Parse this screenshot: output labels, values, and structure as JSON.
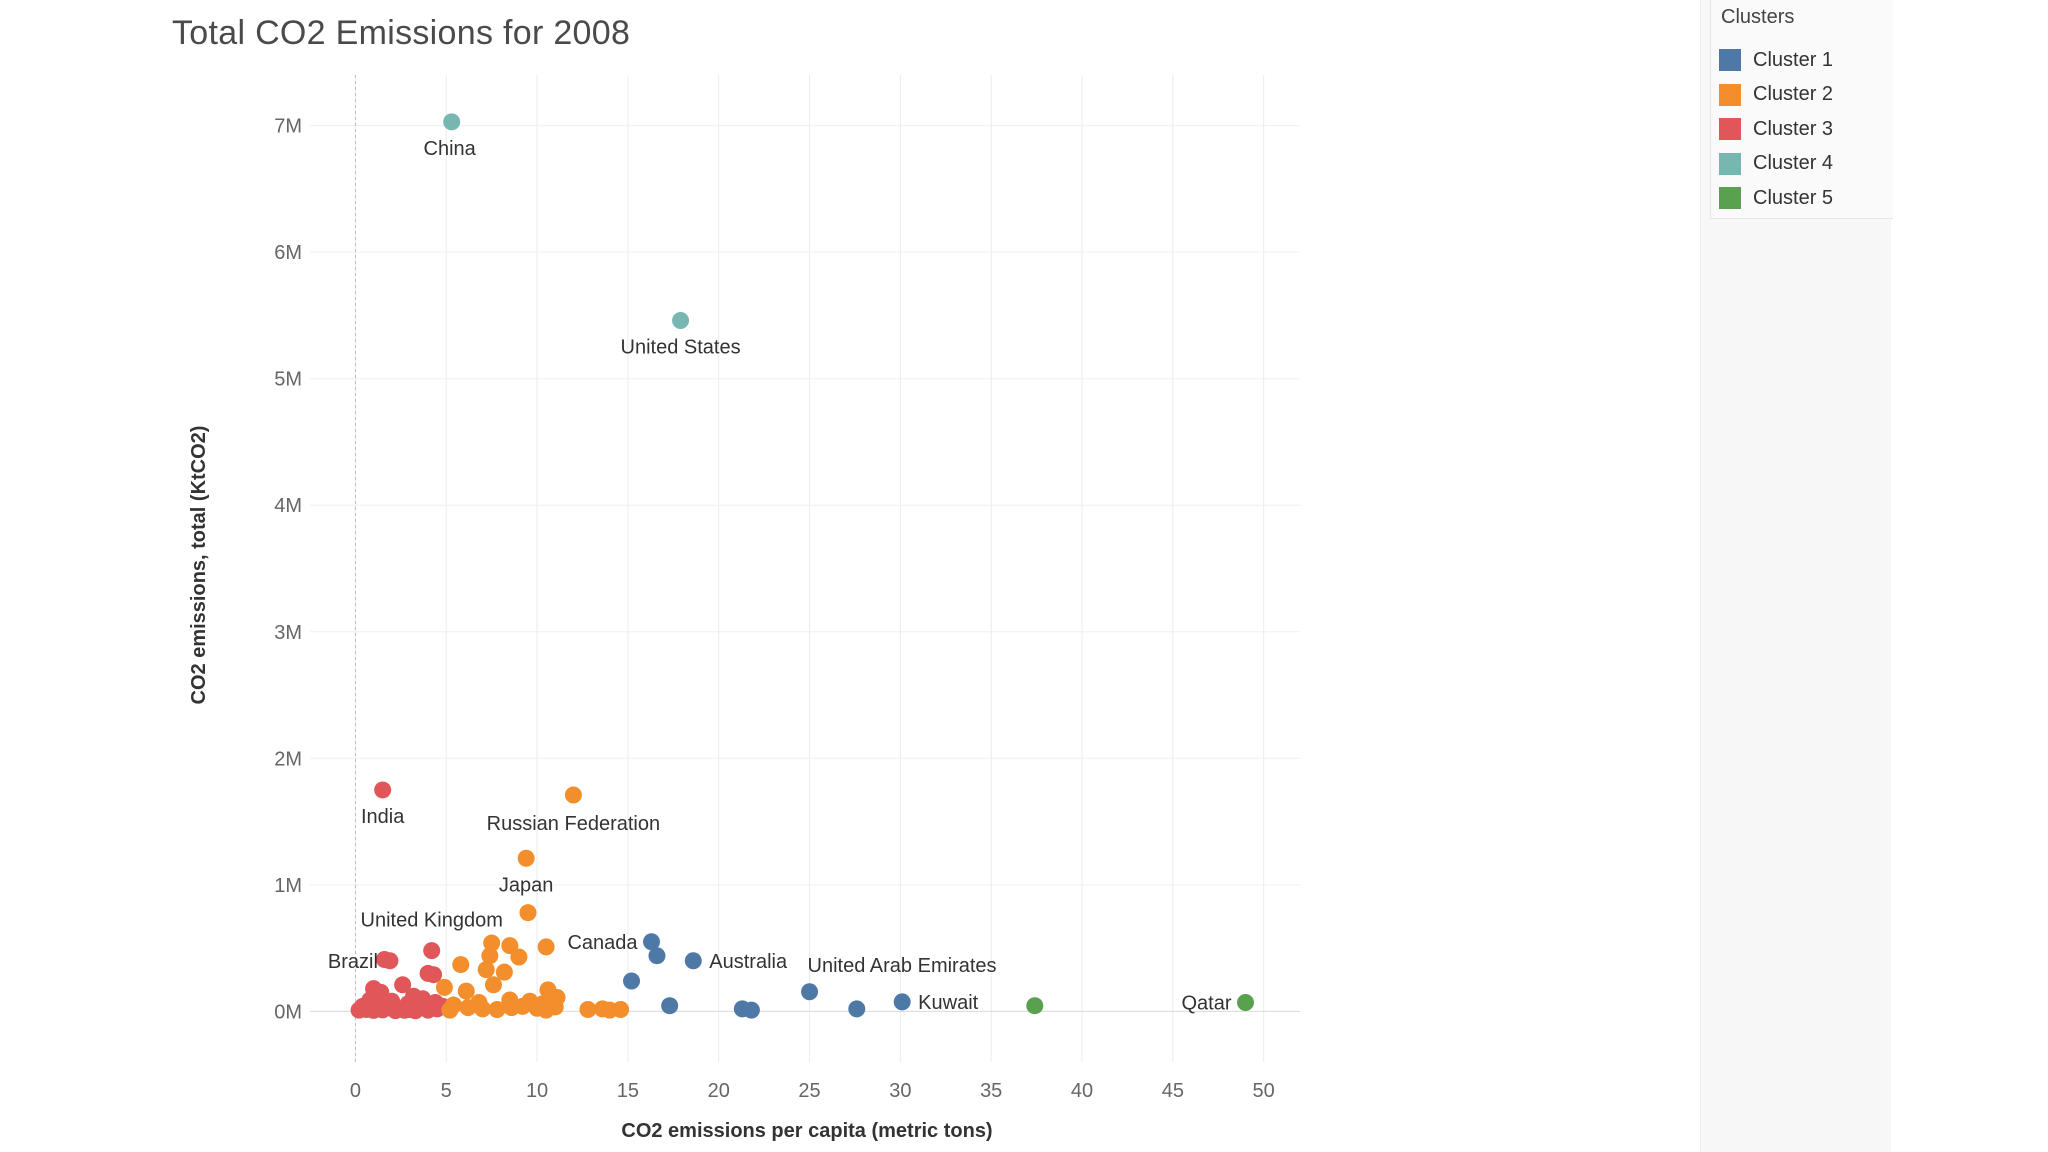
{
  "page": {
    "title": "Total CO2 Emissions for 2008"
  },
  "legend": {
    "title": "Clusters",
    "items": [
      {
        "label": "Cluster 1",
        "color": "#4e79a7"
      },
      {
        "label": "Cluster 2",
        "color": "#f28e2b"
      },
      {
        "label": "Cluster 3",
        "color": "#e15759"
      },
      {
        "label": "Cluster 4",
        "color": "#76b7b2"
      },
      {
        "label": "Cluster 5",
        "color": "#59a14f"
      }
    ]
  },
  "chart_data": {
    "type": "scatter",
    "title": "Total CO2 Emissions for 2008",
    "xlabel": "CO2 emissions per capita (metric tons)",
    "ylabel": "CO2 emissions, total (KtCO2)",
    "xlim": [
      -2.5,
      52
    ],
    "ylim": [
      -400000,
      7400000
    ],
    "x_ticks": [
      0,
      5,
      10,
      15,
      20,
      25,
      30,
      35,
      40,
      45,
      50
    ],
    "x_tick_labels": [
      "0",
      "5",
      "10",
      "15",
      "20",
      "25",
      "30",
      "35",
      "40",
      "45",
      "50"
    ],
    "y_ticks": [
      0,
      1000000,
      2000000,
      3000000,
      4000000,
      5000000,
      6000000,
      7000000
    ],
    "y_tick_labels": [
      "0M",
      "1M",
      "2M",
      "3M",
      "4M",
      "5M",
      "6M",
      "7M"
    ],
    "grid": true,
    "legend_position": "top-right",
    "series": [
      {
        "name": "Cluster 1",
        "color": "#4e79a7",
        "points": [
          {
            "x": 16.3,
            "y": 550000,
            "label": "Canada"
          },
          {
            "x": 16.6,
            "y": 440000
          },
          {
            "x": 18.6,
            "y": 400000,
            "label": "Australia"
          },
          {
            "x": 15.2,
            "y": 240000
          },
          {
            "x": 17.3,
            "y": 45000
          },
          {
            "x": 21.3,
            "y": 20000
          },
          {
            "x": 21.8,
            "y": 10000
          },
          {
            "x": 25.0,
            "y": 155000,
            "label": "United Arab Emirates"
          },
          {
            "x": 27.6,
            "y": 20000
          },
          {
            "x": 30.1,
            "y": 75000,
            "label": "Kuwait"
          }
        ]
      },
      {
        "name": "Cluster 2",
        "color": "#f28e2b",
        "points": [
          {
            "x": 12.0,
            "y": 1710000,
            "label": "Russian Federation"
          },
          {
            "x": 9.4,
            "y": 1210000,
            "label": "Japan"
          },
          {
            "x": 9.5,
            "y": 780000
          },
          {
            "x": 7.5,
            "y": 540000
          },
          {
            "x": 8.5,
            "y": 520000
          },
          {
            "x": 10.5,
            "y": 510000
          },
          {
            "x": 7.4,
            "y": 440000
          },
          {
            "x": 9.0,
            "y": 430000
          },
          {
            "x": 5.8,
            "y": 370000
          },
          {
            "x": 7.2,
            "y": 330000
          },
          {
            "x": 8.2,
            "y": 310000
          },
          {
            "x": 7.6,
            "y": 210000
          },
          {
            "x": 4.9,
            "y": 190000
          },
          {
            "x": 6.1,
            "y": 160000
          },
          {
            "x": 10.6,
            "y": 170000
          },
          {
            "x": 11.1,
            "y": 110000
          },
          {
            "x": 9.6,
            "y": 80000
          },
          {
            "x": 10.3,
            "y": 60000
          },
          {
            "x": 6.8,
            "y": 70000
          },
          {
            "x": 8.5,
            "y": 90000
          },
          {
            "x": 5.4,
            "y": 50000
          },
          {
            "x": 6.2,
            "y": 30000
          },
          {
            "x": 7.0,
            "y": 20000
          },
          {
            "x": 7.8,
            "y": 15000
          },
          {
            "x": 8.6,
            "y": 30000
          },
          {
            "x": 9.2,
            "y": 40000
          },
          {
            "x": 10.0,
            "y": 25000
          },
          {
            "x": 10.5,
            "y": 10000
          },
          {
            "x": 11.0,
            "y": 35000
          },
          {
            "x": 12.8,
            "y": 15000
          },
          {
            "x": 13.6,
            "y": 20000
          },
          {
            "x": 14.0,
            "y": 10000
          },
          {
            "x": 14.6,
            "y": 15000
          },
          {
            "x": 5.2,
            "y": 10000
          }
        ]
      },
      {
        "name": "Cluster 3",
        "color": "#e15759",
        "points": [
          {
            "x": 1.5,
            "y": 1750000,
            "label": "India"
          },
          {
            "x": 1.9,
            "y": 400000,
            "label": "Brazil"
          },
          {
            "x": 1.6,
            "y": 410000
          },
          {
            "x": 4.2,
            "y": 480000,
            "label": "United Kingdom"
          },
          {
            "x": 4.0,
            "y": 300000
          },
          {
            "x": 4.3,
            "y": 290000
          },
          {
            "x": 2.6,
            "y": 210000
          },
          {
            "x": 1.0,
            "y": 180000
          },
          {
            "x": 1.4,
            "y": 150000
          },
          {
            "x": 3.2,
            "y": 120000
          },
          {
            "x": 3.7,
            "y": 100000
          },
          {
            "x": 0.8,
            "y": 90000
          },
          {
            "x": 2.0,
            "y": 80000
          },
          {
            "x": 2.9,
            "y": 60000
          },
          {
            "x": 4.4,
            "y": 70000
          },
          {
            "x": 0.4,
            "y": 40000
          },
          {
            "x": 1.2,
            "y": 50000
          },
          {
            "x": 1.8,
            "y": 30000
          },
          {
            "x": 2.4,
            "y": 20000
          },
          {
            "x": 3.0,
            "y": 15000
          },
          {
            "x": 3.5,
            "y": 25000
          },
          {
            "x": 4.0,
            "y": 10000
          },
          {
            "x": 0.2,
            "y": 10000
          },
          {
            "x": 0.6,
            "y": 15000
          },
          {
            "x": 1.0,
            "y": 8000
          },
          {
            "x": 1.5,
            "y": 12000
          },
          {
            "x": 2.2,
            "y": 6000
          },
          {
            "x": 2.7,
            "y": 9000
          },
          {
            "x": 3.3,
            "y": 5000
          },
          {
            "x": 4.5,
            "y": 20000
          },
          {
            "x": 4.8,
            "y": 40000
          }
        ]
      },
      {
        "name": "Cluster 4",
        "color": "#76b7b2",
        "points": [
          {
            "x": 5.3,
            "y": 7030000,
            "label": "China"
          },
          {
            "x": 17.9,
            "y": 5460000,
            "label": "United States"
          }
        ]
      },
      {
        "name": "Cluster 5",
        "color": "#59a14f",
        "points": [
          {
            "x": 37.4,
            "y": 45000
          },
          {
            "x": 49.0,
            "y": 70000,
            "label": "Qatar"
          }
        ]
      }
    ]
  }
}
